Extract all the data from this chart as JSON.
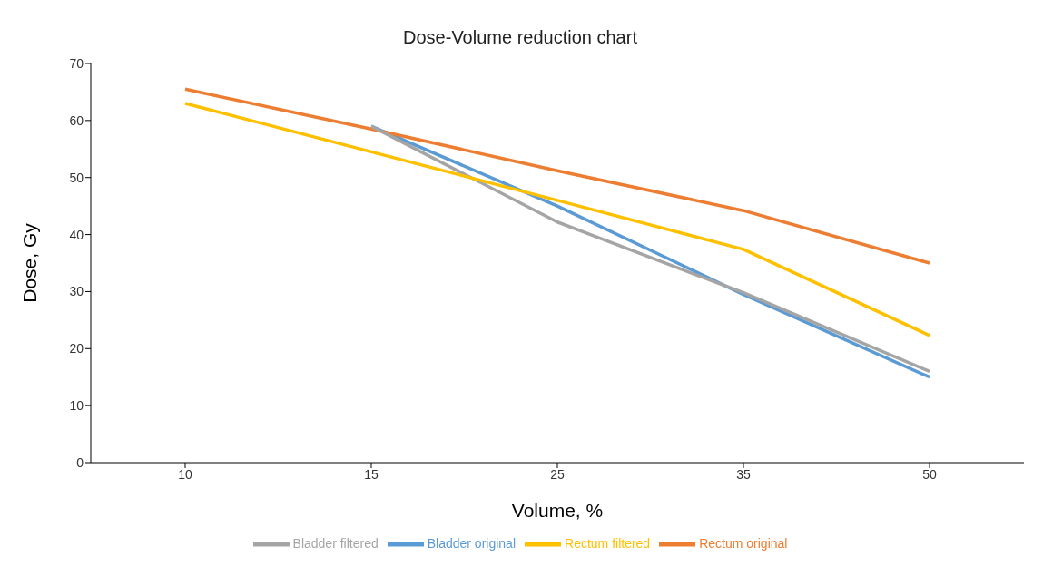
{
  "chart_data": {
    "type": "line",
    "title": "Dose-Volume reduction chart",
    "xlabel": "Volume, %",
    "ylabel": "Dose, Gy",
    "categories": [
      "10",
      "15",
      "25",
      "35",
      "50"
    ],
    "series": [
      {
        "name": "Bladder original",
        "color": "#5b9bd5",
        "values": [
          null,
          59,
          45,
          29.5,
          15
        ]
      },
      {
        "name": "Rectum original",
        "color": "#ed7d31",
        "values": [
          65.5,
          58.5,
          51.2,
          44.2,
          35
        ]
      },
      {
        "name": "Bladder filtered",
        "color": "#a5a5a5",
        "values": [
          null,
          59,
          42.2,
          29.8,
          16
        ]
      },
      {
        "name": "Rectum filtered",
        "color": "#ffc000",
        "values": [
          63,
          54.5,
          46,
          37.4,
          22.3
        ]
      }
    ],
    "ylim": [
      0,
      70
    ],
    "yticks": [
      0,
      10,
      20,
      30,
      40,
      50,
      60,
      70
    ],
    "grid": false,
    "legend": "bottom",
    "marker": "none",
    "line_style": "solid"
  }
}
